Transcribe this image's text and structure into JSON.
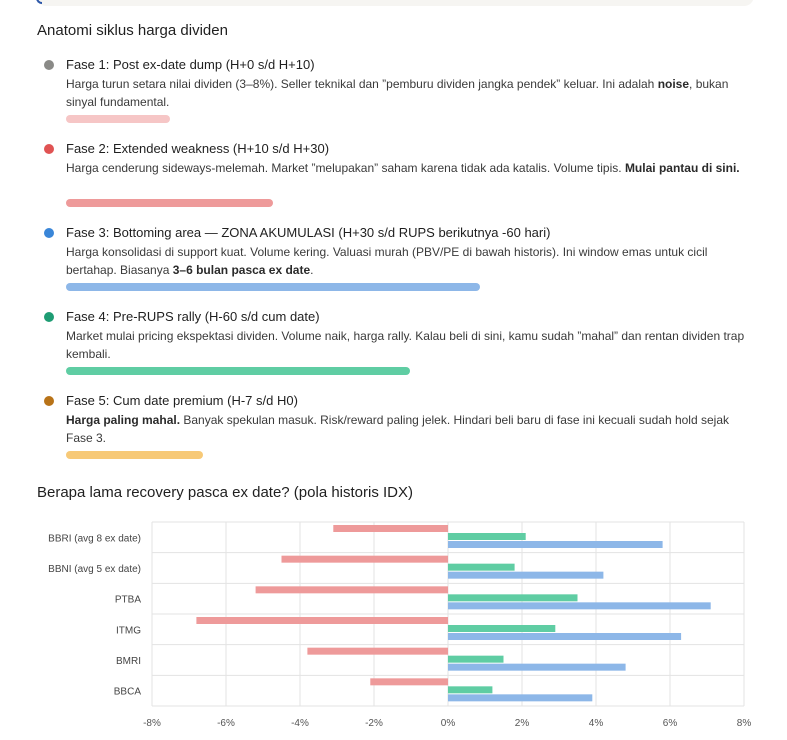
{
  "section1": {
    "title": "Anatomi siklus harga dividen",
    "phases": [
      {
        "title": "Fase 1: Post ex-date dump (H+0 s/d H+10)",
        "desc_a": "Harga turun setara nilai dividen (3–8%). Seller teknikal dan ”pemburu dividen jangka pendek” keluar. Ini adalah ",
        "desc_bold": "noise",
        "desc_b": ", bukan sinyal fundamental.",
        "dot_color": "#8a8a87",
        "bar_color": "#f6c6c6",
        "bar_level": 0.25
      },
      {
        "title": "Fase 2: Extended weakness (H+10 s/d H+30)",
        "desc_a": "Harga cenderung sideways-melemah. Market ”melupakan” saham karena tidak ada katalis. Volume tipis. ",
        "desc_bold": "Mulai pantau di sini.",
        "desc_b": "",
        "dot_color": "#e05353",
        "bar_color": "#ee9a9a",
        "bar_level": 0.5
      },
      {
        "title": "Fase 3: Bottoming area — ZONA AKUMULASI (H+30 s/d RUPS berikutnya -60 hari)",
        "desc_a": "Harga konsolidasi di support kuat. Volume kering. Valuasi murah (PBV/PE di bawah historis). Ini window emas untuk cicil bertahap. Biasanya ",
        "desc_bold": "3–6 bulan pasca ex date",
        "desc_b": ".",
        "dot_color": "#3a86d8",
        "bar_color": "#8db7e8",
        "bar_level": 1.0
      },
      {
        "title": "Fase 4: Pre-RUPS rally (H-60 s/d cum date)",
        "desc_a": "Market mulai pricing ekspektasi dividen. Volume naik, harga rally. Kalau beli di sini, kamu sudah ”mahal” dan rentan dividen trap kembali.",
        "desc_bold": "",
        "desc_b": "",
        "dot_color": "#1e9c73",
        "bar_color": "#5fcda3",
        "bar_level": 0.83
      },
      {
        "title": "Fase 5: Cum date premium (H-7 s/d H0)",
        "desc_a": "",
        "desc_bold": "Harga paling mahal.",
        "desc_b": " Banyak spekulan masuk. Risk/reward paling jelek. Hindari beli baru di fase ini kecuali sudah hold sejak Fase 3.",
        "dot_color": "#b87318",
        "bar_color": "#f7c977",
        "bar_level": 0.33
      }
    ]
  },
  "section2": {
    "title": "Berapa lama recovery pasca ex date? (pola historis IDX)"
  },
  "chart_data": {
    "type": "bar",
    "orientation": "horizontal",
    "categories": [
      "BBRI (avg 8 ex date)",
      "BBNI (avg 5 ex date)",
      "PTBA",
      "ITMG",
      "BMRI",
      "BBCA"
    ],
    "series": [
      {
        "color": "#ee9a9a",
        "values": [
          -3.1,
          -4.5,
          -5.2,
          -6.8,
          -3.8,
          -2.1
        ]
      },
      {
        "color": "#5fcda3",
        "values": [
          2.1,
          1.8,
          3.5,
          2.9,
          1.5,
          1.2
        ]
      },
      {
        "color": "#8db7e8",
        "values": [
          5.8,
          4.2,
          7.1,
          6.3,
          4.8,
          3.9
        ]
      }
    ],
    "xlim": [
      -8,
      8
    ],
    "xticks": [
      "-8%",
      "-6%",
      "-4%",
      "-2%",
      "0%",
      "2%",
      "4%",
      "6%",
      "8%"
    ],
    "grid": true,
    "legend": "none"
  }
}
